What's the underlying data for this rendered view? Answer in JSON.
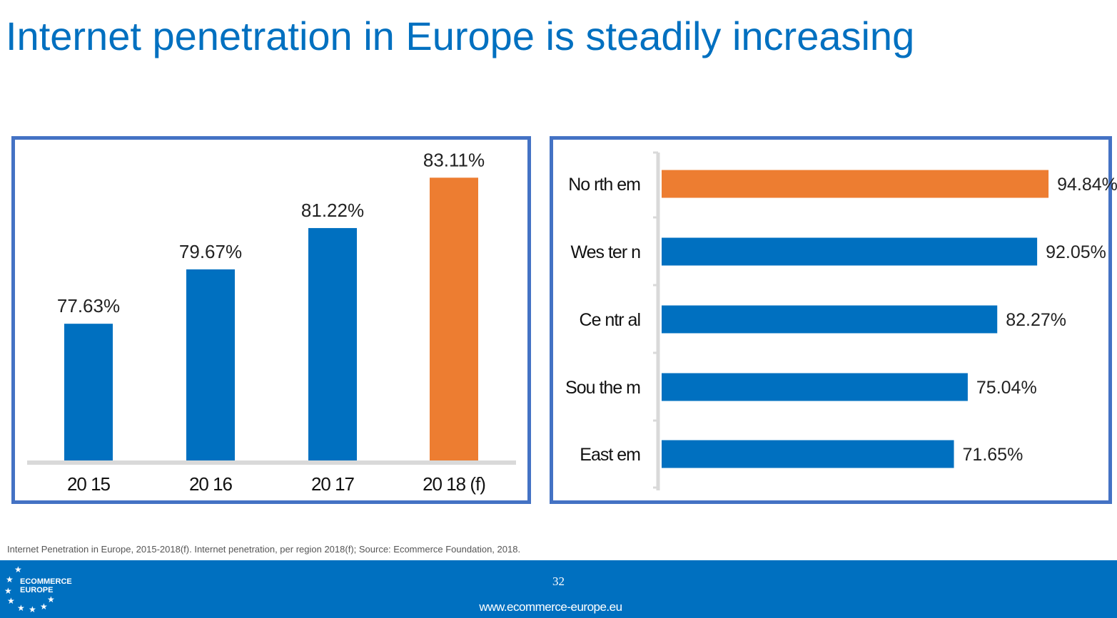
{
  "title": "Internet penetration in Europe is steadily increasing",
  "source_note": "Internet Penetration in Europe, 2015-2018(f). Internet penetration, per region 2018(f); Source: Ecommerce Foundation, 2018.",
  "footer": {
    "page_number": "32",
    "url": "www.ecommerce-europe.eu",
    "logo_line1": "ECOMMERCE",
    "logo_line2": "EUROPE"
  },
  "colors": {
    "blue": "#0070C0",
    "orange": "#ED7D31",
    "frame": "#4472C4",
    "axis": "#D9D9D9"
  },
  "chart_data": [
    {
      "type": "bar",
      "orientation": "vertical",
      "categories": [
        "20 15",
        "20 16",
        "20 17",
        "20 18 (f)"
      ],
      "values": [
        77.63,
        79.67,
        81.22,
        83.11
      ],
      "labels": [
        "77.63%",
        "79.67%",
        "81.22%",
        "83.11%"
      ],
      "highlight_index": 3,
      "ylim": [
        72.5,
        84
      ]
    },
    {
      "type": "bar",
      "orientation": "horizontal",
      "categories": [
        "No rth em",
        "Wes ter n",
        "Ce ntr al",
        "Sou the m",
        "East em"
      ],
      "values": [
        94.84,
        92.05,
        82.27,
        75.04,
        71.65
      ],
      "labels": [
        "94.84%",
        "92.05%",
        "82.27%",
        "75.04%",
        "71.65%"
      ],
      "highlight_index": 0,
      "xlim": [
        0,
        109
      ]
    }
  ]
}
